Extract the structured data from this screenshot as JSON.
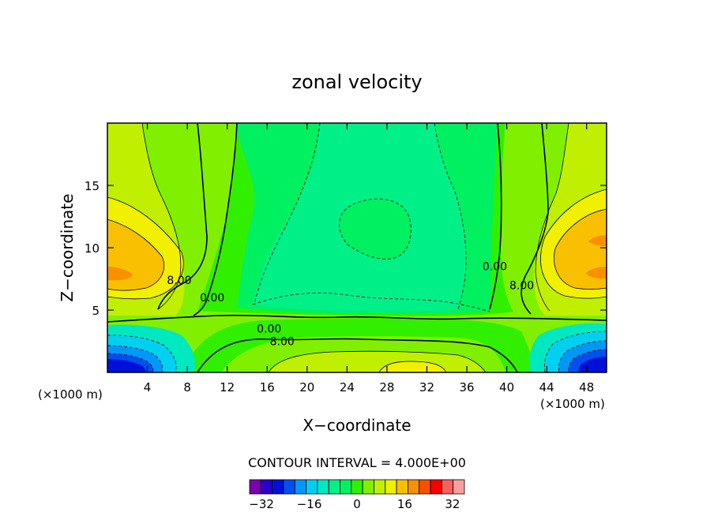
{
  "chart_data": {
    "type": "heatmap",
    "title": "zonal velocity",
    "xlabel": "X−coordinate",
    "ylabel": "Z−coordinate",
    "x_unit_left": "(×1000 m)",
    "x_unit_right": "(×1000 m)",
    "xlim": [
      0,
      50
    ],
    "ylim": [
      0,
      20
    ],
    "x_ticks": [
      "4",
      "8",
      "12",
      "16",
      "20",
      "24",
      "28",
      "32",
      "36",
      "40",
      "44",
      "48"
    ],
    "x_tick_values": [
      4,
      8,
      12,
      16,
      20,
      24,
      28,
      32,
      36,
      40,
      44,
      48
    ],
    "y_ticks": [
      "5",
      "10",
      "15"
    ],
    "y_tick_values": [
      5,
      10,
      15
    ],
    "contour_interval_text": "CONTOUR INTERVAL = 4.000E+00",
    "contour_interval": 4,
    "contour_labels": [
      {
        "text": "8.00",
        "x": 7.2,
        "y": 7.4
      },
      {
        "text": "0.00",
        "x": 10.5,
        "y": 6.0
      },
      {
        "text": "0.00",
        "x": 16.2,
        "y": 3.5
      },
      {
        "text": "8.00",
        "x": 17.5,
        "y": 2.5
      },
      {
        "text": "0.00",
        "x": 38.8,
        "y": 8.5
      },
      {
        "text": "8.00",
        "x": 41.5,
        "y": 7.0
      }
    ],
    "colorbar": {
      "min": -36,
      "max": 36,
      "levels": 18,
      "tick_labels": [
        "−32",
        "−16",
        "0",
        "16",
        "32"
      ],
      "tick_values": [
        -32,
        -16,
        0,
        16,
        32
      ],
      "colors": [
        "#7a00b0",
        "#2a00c8",
        "#0010d8",
        "#0050f0",
        "#0098f8",
        "#00d0f0",
        "#00e8c0",
        "#00f088",
        "#00f060",
        "#30f000",
        "#80f000",
        "#c0f000",
        "#f0f000",
        "#f8c000",
        "#f89000",
        "#f85000",
        "#f80000",
        "#f86060",
        "#f8a0a0"
      ]
    },
    "grid": false
  }
}
